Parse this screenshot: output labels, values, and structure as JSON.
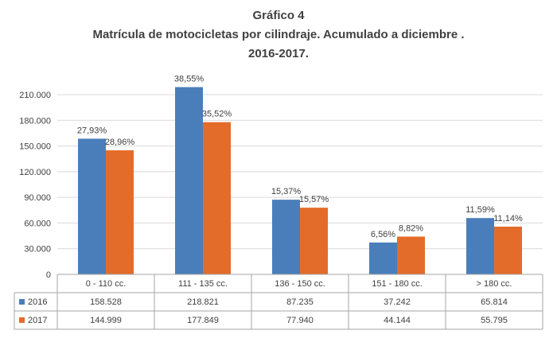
{
  "title_lines": [
    "Gráfico 4",
    "Matrícula de motocicletas por cilindraje. Acumulado a diciembre .",
    "2016-2017."
  ],
  "colors": {
    "s2016": "#4a7ebb",
    "s2017": "#e46c2a",
    "grid": "#d9d9d9",
    "axis": "#a6a6a6"
  },
  "chart_data": {
    "type": "bar",
    "title": "Gráfico 4 Matrícula de motocicletas por cilindraje. Acumulado a diciembre . 2016-2017.",
    "categories": [
      "0 - 110 cc.",
      "111 - 135 cc.",
      "136 - 150 cc.",
      "151 - 180 cc.",
      "> 180 cc."
    ],
    "series": [
      {
        "name": "2016",
        "values": [
          158528,
          218821,
          87235,
          37242,
          65814
        ],
        "display": [
          "158.528",
          "218.821",
          "87.235",
          "37.242",
          "65.814"
        ],
        "pct_labels": [
          "27,93%",
          "38,55%",
          "15,37%",
          "6,56%",
          "11,59%"
        ]
      },
      {
        "name": "2017",
        "values": [
          144999,
          177849,
          77940,
          44144,
          55795
        ],
        "display": [
          "144.999",
          "177.849",
          "77.940",
          "44.144",
          "55.795"
        ],
        "pct_labels": [
          "28,96%",
          "35,52%",
          "15,57%",
          "8,82%",
          "11,14%"
        ]
      }
    ],
    "ylim": [
      0,
      210000
    ],
    "yticks": [
      0,
      30000,
      60000,
      90000,
      120000,
      150000,
      180000,
      210000
    ],
    "ytick_labels": [
      "0",
      "30.000",
      "60.000",
      "90.000",
      "120.000",
      "150.000",
      "180.000",
      "210.000"
    ],
    "grid": true,
    "legend": "data-table"
  }
}
